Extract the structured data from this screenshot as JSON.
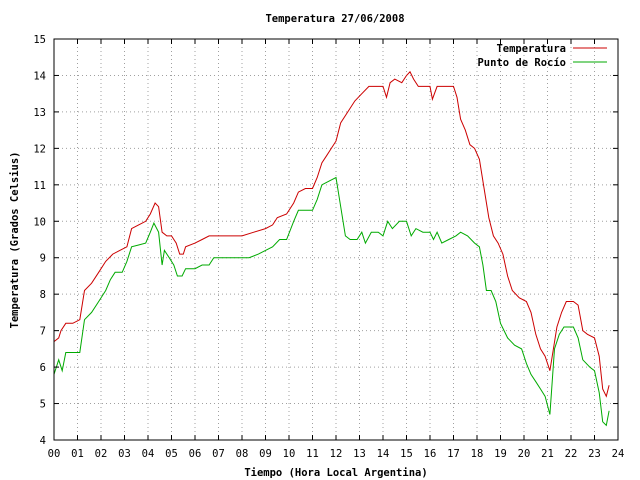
{
  "chart_data": {
    "type": "line",
    "title": "Temperatura 27/06/2008",
    "xlabel": "Tiempo (Hora Local Argentina)",
    "ylabel": "Temperatura (Grados Celsius)",
    "xlim": [
      0,
      24
    ],
    "ylim": [
      4,
      15
    ],
    "xticks": [
      "00",
      "01",
      "02",
      "03",
      "04",
      "05",
      "06",
      "07",
      "08",
      "09",
      "10",
      "11",
      "12",
      "13",
      "14",
      "15",
      "16",
      "17",
      "18",
      "19",
      "20",
      "21",
      "22",
      "23",
      "24"
    ],
    "yticks": [
      "4",
      "5",
      "6",
      "7",
      "8",
      "9",
      "10",
      "11",
      "12",
      "13",
      "14",
      "15"
    ],
    "grid": true,
    "legend_position": "top-right",
    "series": [
      {
        "name": "Temperatura",
        "color": "#cc0000",
        "points": [
          [
            0.0,
            6.7
          ],
          [
            0.2,
            6.8
          ],
          [
            0.3,
            7.0
          ],
          [
            0.5,
            7.2
          ],
          [
            0.8,
            7.2
          ],
          [
            1.1,
            7.3
          ],
          [
            1.3,
            8.1
          ],
          [
            1.6,
            8.3
          ],
          [
            1.9,
            8.6
          ],
          [
            2.2,
            8.9
          ],
          [
            2.5,
            9.1
          ],
          [
            2.8,
            9.2
          ],
          [
            3.1,
            9.3
          ],
          [
            3.3,
            9.8
          ],
          [
            3.6,
            9.9
          ],
          [
            3.9,
            10.0
          ],
          [
            4.1,
            10.2
          ],
          [
            4.3,
            10.5
          ],
          [
            4.45,
            10.4
          ],
          [
            4.6,
            9.7
          ],
          [
            4.8,
            9.6
          ],
          [
            5.0,
            9.6
          ],
          [
            5.2,
            9.4
          ],
          [
            5.35,
            9.1
          ],
          [
            5.5,
            9.1
          ],
          [
            5.6,
            9.3
          ],
          [
            6.0,
            9.4
          ],
          [
            6.3,
            9.5
          ],
          [
            6.6,
            9.6
          ],
          [
            7.0,
            9.6
          ],
          [
            7.5,
            9.6
          ],
          [
            8.0,
            9.6
          ],
          [
            8.5,
            9.7
          ],
          [
            9.0,
            9.8
          ],
          [
            9.3,
            9.9
          ],
          [
            9.5,
            10.1
          ],
          [
            9.9,
            10.2
          ],
          [
            10.2,
            10.5
          ],
          [
            10.4,
            10.8
          ],
          [
            10.7,
            10.9
          ],
          [
            11.0,
            10.9
          ],
          [
            11.2,
            11.2
          ],
          [
            11.4,
            11.6
          ],
          [
            11.6,
            11.8
          ],
          [
            11.8,
            12.0
          ],
          [
            12.0,
            12.2
          ],
          [
            12.2,
            12.7
          ],
          [
            12.5,
            13.0
          ],
          [
            12.8,
            13.3
          ],
          [
            13.1,
            13.5
          ],
          [
            13.4,
            13.7
          ],
          [
            13.7,
            13.7
          ],
          [
            14.0,
            13.7
          ],
          [
            14.15,
            13.4
          ],
          [
            14.3,
            13.8
          ],
          [
            14.5,
            13.9
          ],
          [
            14.8,
            13.8
          ],
          [
            15.0,
            14.0
          ],
          [
            15.15,
            14.1
          ],
          [
            15.3,
            13.9
          ],
          [
            15.5,
            13.7
          ],
          [
            15.8,
            13.7
          ],
          [
            16.0,
            13.7
          ],
          [
            16.1,
            13.35
          ],
          [
            16.3,
            13.7
          ],
          [
            16.6,
            13.7
          ],
          [
            17.0,
            13.7
          ],
          [
            17.15,
            13.4
          ],
          [
            17.3,
            12.8
          ],
          [
            17.5,
            12.5
          ],
          [
            17.7,
            12.1
          ],
          [
            17.9,
            12.0
          ],
          [
            18.1,
            11.7
          ],
          [
            18.3,
            10.9
          ],
          [
            18.5,
            10.1
          ],
          [
            18.7,
            9.6
          ],
          [
            18.9,
            9.4
          ],
          [
            19.1,
            9.1
          ],
          [
            19.3,
            8.5
          ],
          [
            19.5,
            8.1
          ],
          [
            19.8,
            7.9
          ],
          [
            20.1,
            7.8
          ],
          [
            20.3,
            7.5
          ],
          [
            20.5,
            6.9
          ],
          [
            20.7,
            6.5
          ],
          [
            20.9,
            6.3
          ],
          [
            21.1,
            5.9
          ],
          [
            21.25,
            6.5
          ],
          [
            21.4,
            7.1
          ],
          [
            21.6,
            7.5
          ],
          [
            21.8,
            7.8
          ],
          [
            22.1,
            7.8
          ],
          [
            22.3,
            7.7
          ],
          [
            22.5,
            7.0
          ],
          [
            22.7,
            6.9
          ],
          [
            23.0,
            6.8
          ],
          [
            23.2,
            6.3
          ],
          [
            23.35,
            5.4
          ],
          [
            23.5,
            5.2
          ],
          [
            23.62,
            5.5
          ]
        ]
      },
      {
        "name": "Punto de Rocío",
        "color": "#00aa00",
        "points": [
          [
            0.0,
            5.8
          ],
          [
            0.2,
            6.2
          ],
          [
            0.35,
            5.9
          ],
          [
            0.5,
            6.4
          ],
          [
            0.8,
            6.4
          ],
          [
            1.1,
            6.4
          ],
          [
            1.3,
            7.3
          ],
          [
            1.6,
            7.5
          ],
          [
            1.9,
            7.8
          ],
          [
            2.2,
            8.1
          ],
          [
            2.4,
            8.4
          ],
          [
            2.6,
            8.6
          ],
          [
            2.9,
            8.6
          ],
          [
            3.1,
            8.9
          ],
          [
            3.3,
            9.3
          ],
          [
            3.6,
            9.35
          ],
          [
            3.9,
            9.4
          ],
          [
            4.1,
            9.7
          ],
          [
            4.25,
            9.95
          ],
          [
            4.45,
            9.7
          ],
          [
            4.6,
            8.8
          ],
          [
            4.7,
            9.2
          ],
          [
            4.9,
            9.0
          ],
          [
            5.1,
            8.8
          ],
          [
            5.25,
            8.5
          ],
          [
            5.45,
            8.5
          ],
          [
            5.6,
            8.7
          ],
          [
            6.0,
            8.7
          ],
          [
            6.3,
            8.8
          ],
          [
            6.6,
            8.8
          ],
          [
            6.8,
            9.0
          ],
          [
            7.5,
            9.0
          ],
          [
            8.3,
            9.0
          ],
          [
            8.7,
            9.1
          ],
          [
            9.0,
            9.2
          ],
          [
            9.3,
            9.3
          ],
          [
            9.6,
            9.5
          ],
          [
            9.9,
            9.5
          ],
          [
            10.2,
            10.0
          ],
          [
            10.4,
            10.3
          ],
          [
            10.7,
            10.3
          ],
          [
            11.0,
            10.3
          ],
          [
            11.2,
            10.6
          ],
          [
            11.4,
            11.0
          ],
          [
            11.7,
            11.1
          ],
          [
            12.0,
            11.2
          ],
          [
            12.2,
            10.4
          ],
          [
            12.4,
            9.6
          ],
          [
            12.6,
            9.5
          ],
          [
            12.9,
            9.5
          ],
          [
            13.1,
            9.7
          ],
          [
            13.25,
            9.4
          ],
          [
            13.5,
            9.7
          ],
          [
            13.8,
            9.7
          ],
          [
            14.0,
            9.6
          ],
          [
            14.2,
            10.0
          ],
          [
            14.4,
            9.8
          ],
          [
            14.7,
            10.0
          ],
          [
            15.0,
            10.0
          ],
          [
            15.2,
            9.6
          ],
          [
            15.4,
            9.8
          ],
          [
            15.7,
            9.7
          ],
          [
            16.0,
            9.7
          ],
          [
            16.15,
            9.5
          ],
          [
            16.3,
            9.7
          ],
          [
            16.5,
            9.4
          ],
          [
            16.8,
            9.5
          ],
          [
            17.1,
            9.6
          ],
          [
            17.3,
            9.7
          ],
          [
            17.6,
            9.6
          ],
          [
            17.9,
            9.4
          ],
          [
            18.1,
            9.3
          ],
          [
            18.25,
            8.8
          ],
          [
            18.4,
            8.1
          ],
          [
            18.6,
            8.1
          ],
          [
            18.8,
            7.8
          ],
          [
            19.0,
            7.2
          ],
          [
            19.3,
            6.8
          ],
          [
            19.6,
            6.6
          ],
          [
            19.9,
            6.5
          ],
          [
            20.1,
            6.1
          ],
          [
            20.3,
            5.8
          ],
          [
            20.5,
            5.6
          ],
          [
            20.7,
            5.4
          ],
          [
            20.9,
            5.2
          ],
          [
            21.1,
            4.7
          ],
          [
            21.3,
            6.5
          ],
          [
            21.5,
            6.9
          ],
          [
            21.7,
            7.1
          ],
          [
            22.1,
            7.1
          ],
          [
            22.3,
            6.8
          ],
          [
            22.5,
            6.2
          ],
          [
            22.8,
            6.0
          ],
          [
            23.0,
            5.9
          ],
          [
            23.2,
            5.3
          ],
          [
            23.35,
            4.5
          ],
          [
            23.5,
            4.4
          ],
          [
            23.62,
            4.8
          ]
        ]
      }
    ]
  }
}
